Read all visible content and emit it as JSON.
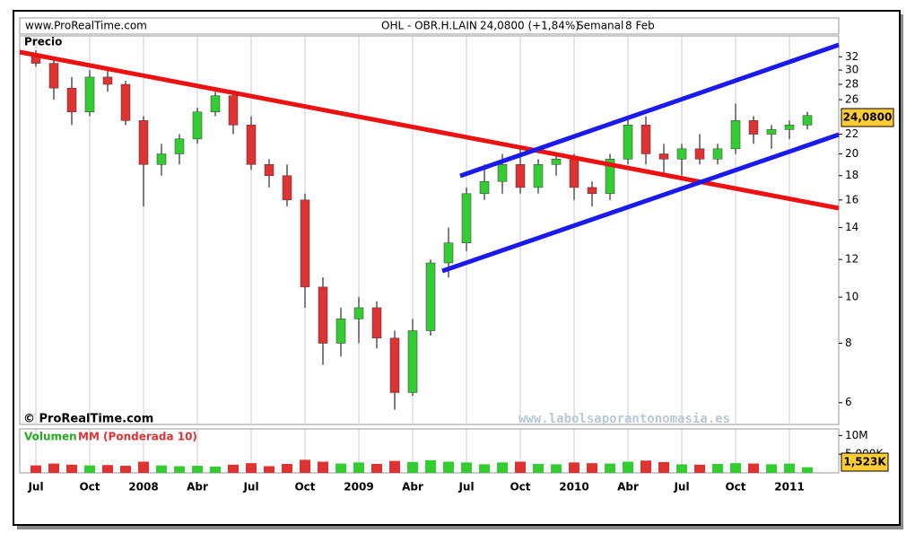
{
  "header": {
    "site": "www.ProRealTime.com",
    "symbol": "OHL - OBR.H.LAIN",
    "quote": "24,0800 (+1,84%)",
    "period": "Semanal",
    "date": "8 Feb"
  },
  "chart_data": [
    {
      "type": "candlestick",
      "title": "Precio",
      "credit": "© ProRealTime.com",
      "watermark": "www.labolsaporantonomasia.es",
      "price_tag": "24,0800",
      "log_scale": true,
      "grid": "x",
      "up_color": "#33cc33",
      "down_color": "#dd3333",
      "categories": [
        "Jul",
        null,
        null,
        "Oct",
        null,
        null,
        "2008",
        null,
        null,
        "Abr",
        null,
        null,
        "Jul",
        null,
        null,
        "Oct",
        null,
        null,
        "2009",
        null,
        null,
        "Abr",
        null,
        null,
        "Jul",
        null,
        null,
        "Oct",
        null,
        null,
        "2010",
        null,
        null,
        "Abr",
        null,
        null,
        "Jul",
        null,
        null,
        "Oct",
        null,
        null,
        "2011",
        null
      ],
      "open": [
        32.5,
        31,
        27.5,
        24.5,
        29,
        28,
        23.5,
        19,
        20,
        21.5,
        24.5,
        26.5,
        23,
        19,
        18,
        16,
        10.5,
        8,
        9,
        9.5,
        8.2,
        6.3,
        8.5,
        11.8,
        13,
        16.5,
        17.5,
        19,
        17,
        19,
        19.5,
        17,
        16.5,
        19.5,
        23,
        20,
        19.5,
        20.5,
        19.5,
        20.5,
        23.5,
        22,
        22.5,
        23
      ],
      "high": [
        33,
        31.5,
        29,
        30,
        30.5,
        28.5,
        24,
        21,
        22,
        25,
        27,
        27,
        24,
        19.5,
        19,
        16.5,
        11,
        9.5,
        10,
        9.8,
        8.5,
        9,
        12,
        14,
        17,
        19,
        20,
        20.5,
        19.5,
        20,
        20,
        17.5,
        20,
        24,
        24,
        21,
        21,
        22,
        21,
        25.5,
        24,
        23,
        23.5,
        24.5
      ],
      "low": [
        30.5,
        26,
        23,
        24,
        27,
        23,
        15.5,
        18,
        19,
        21,
        24,
        22,
        18.5,
        17,
        15.5,
        9.5,
        7.2,
        7.5,
        8,
        7.8,
        5.8,
        6.2,
        8.3,
        11,
        12.5,
        16,
        16.5,
        16.5,
        16.5,
        18,
        16,
        15.5,
        16,
        19,
        19,
        18,
        18,
        19,
        19,
        20,
        21,
        20.5,
        21.5,
        22.5
      ],
      "close": [
        31,
        27.5,
        24.5,
        29,
        28,
        23.5,
        19,
        20,
        21.5,
        24.5,
        26.5,
        23,
        19,
        18,
        16,
        10.5,
        8,
        9,
        9.5,
        8.2,
        6.3,
        8.5,
        11.8,
        13,
        16.5,
        17.5,
        19,
        17,
        19,
        19.5,
        17,
        16.5,
        19.5,
        23,
        20,
        19.5,
        20.5,
        19.5,
        20.5,
        23.5,
        22,
        22.5,
        23,
        24.08
      ],
      "ylim": [
        5.4,
        35.4
      ],
      "yticks": [
        6,
        8,
        10,
        12,
        14,
        16,
        18,
        20,
        22,
        26,
        28,
        30,
        32
      ]
    },
    {
      "type": "bar",
      "title": "Volumen",
      "subtitle": "MM (Ponderada 10)",
      "value_tag": "1,523K",
      "values": [
        2000000,
        2500000,
        2200000,
        2000000,
        2100000,
        1900000,
        3000000,
        2000000,
        1800000,
        1900000,
        1700000,
        2200000,
        2600000,
        1800000,
        2400000,
        3500000,
        3000000,
        2500000,
        2800000,
        2400000,
        3200000,
        2900000,
        3400000,
        3000000,
        2800000,
        2300000,
        2800000,
        3000000,
        2400000,
        2300000,
        2800000,
        2600000,
        2500000,
        3000000,
        3300000,
        2900000,
        2300000,
        2200000,
        2400000,
        2600000,
        2500000,
        2300000,
        2500000,
        1523000
      ],
      "ylim": [
        0,
        11750000
      ],
      "yticks": [
        {
          "value": 10000000,
          "label": "10M"
        },
        {
          "value": 5000000,
          "label": "5,000K"
        }
      ]
    }
  ]
}
